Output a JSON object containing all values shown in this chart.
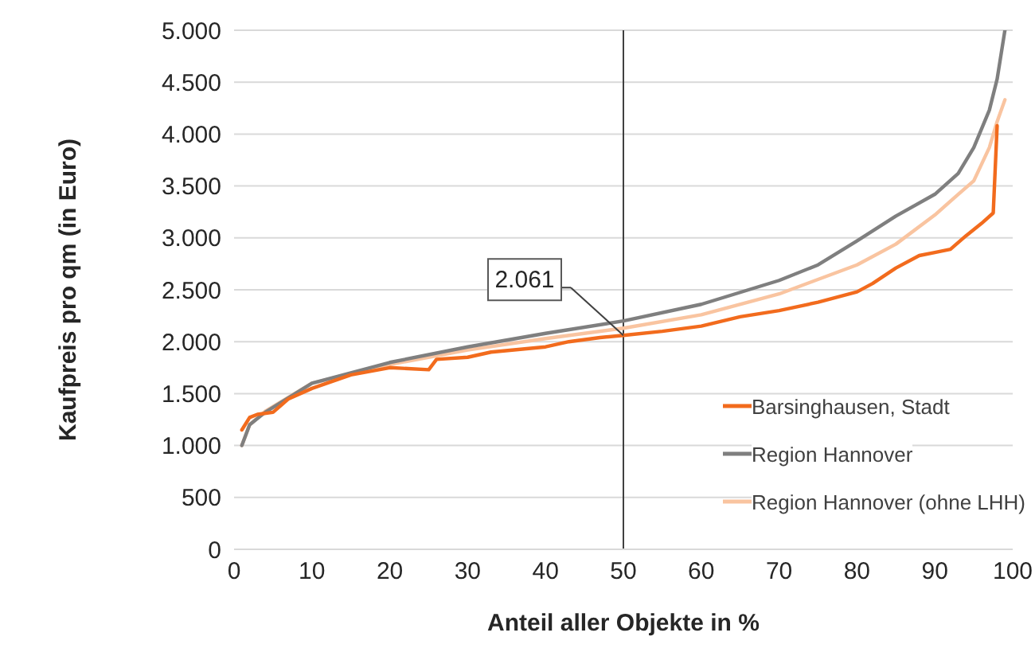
{
  "chart_data": {
    "type": "line",
    "xlabel": "Anteil aller Objekte in %",
    "ylabel": "Kaufpreis pro qm (in Euro)",
    "series": [
      {
        "name": "Barsinghausen, Stadt",
        "color": "#f26b1d",
        "x": [
          1,
          2,
          3,
          5,
          7,
          10,
          15,
          20,
          25,
          26,
          30,
          33,
          40,
          43,
          47,
          50,
          55,
          60,
          65,
          70,
          75,
          80,
          82,
          85,
          88,
          90,
          92,
          94,
          96,
          97.5,
          98
        ],
        "values": [
          1150,
          1270,
          1300,
          1320,
          1450,
          1550,
          1680,
          1750,
          1730,
          1830,
          1850,
          1900,
          1950,
          2000,
          2040,
          2061,
          2100,
          2150,
          2240,
          2300,
          2380,
          2480,
          2560,
          2710,
          2830,
          2860,
          2890,
          3020,
          3140,
          3240,
          4080
        ]
      },
      {
        "name": "Region Hannover",
        "color": "#7f7f7f",
        "x": [
          1,
          2,
          4,
          10,
          20,
          30,
          40,
          50,
          60,
          70,
          75,
          80,
          85,
          90,
          93,
          95,
          97,
          98,
          99
        ],
        "values": [
          1000,
          1200,
          1320,
          1600,
          1800,
          1950,
          2080,
          2200,
          2360,
          2590,
          2740,
          2970,
          3210,
          3420,
          3620,
          3870,
          4230,
          4530,
          5000
        ]
      },
      {
        "name": "Region Hannover (ohne LHH)",
        "color": "#f9c4a0",
        "x": [
          1,
          2,
          4,
          10,
          20,
          30,
          40,
          50,
          60,
          70,
          80,
          85,
          90,
          93,
          95,
          97,
          98,
          99
        ],
        "values": [
          1000,
          1200,
          1330,
          1600,
          1780,
          1920,
          2030,
          2130,
          2260,
          2460,
          2740,
          2940,
          3220,
          3420,
          3550,
          3870,
          4120,
          4330
        ]
      }
    ],
    "xlim": [
      0,
      100
    ],
    "xticks": [
      0,
      10,
      20,
      30,
      40,
      50,
      60,
      70,
      80,
      90,
      100
    ],
    "ylim": [
      0,
      5000
    ],
    "yticks": [
      {
        "value": 0,
        "label": "0"
      },
      {
        "value": 500,
        "label": "500"
      },
      {
        "value": 1000,
        "label": "1.000"
      },
      {
        "value": 1500,
        "label": "1.500"
      },
      {
        "value": 2000,
        "label": "2.000"
      },
      {
        "value": 2500,
        "label": "2.500"
      },
      {
        "value": 3000,
        "label": "3.000"
      },
      {
        "value": 3500,
        "label": "3.500"
      },
      {
        "value": 4000,
        "label": "4.000"
      },
      {
        "value": 4500,
        "label": "4.500"
      },
      {
        "value": 5000,
        "label": "5.000"
      }
    ],
    "grid": "y",
    "legend": "bottom right",
    "marker": "none",
    "line_style": "solid",
    "ref_lines": [
      {
        "axis": "x",
        "value": 50,
        "color": "#404040"
      }
    ],
    "annotations": [
      {
        "text": "2.061",
        "x": 50,
        "y": 2061
      }
    ]
  }
}
